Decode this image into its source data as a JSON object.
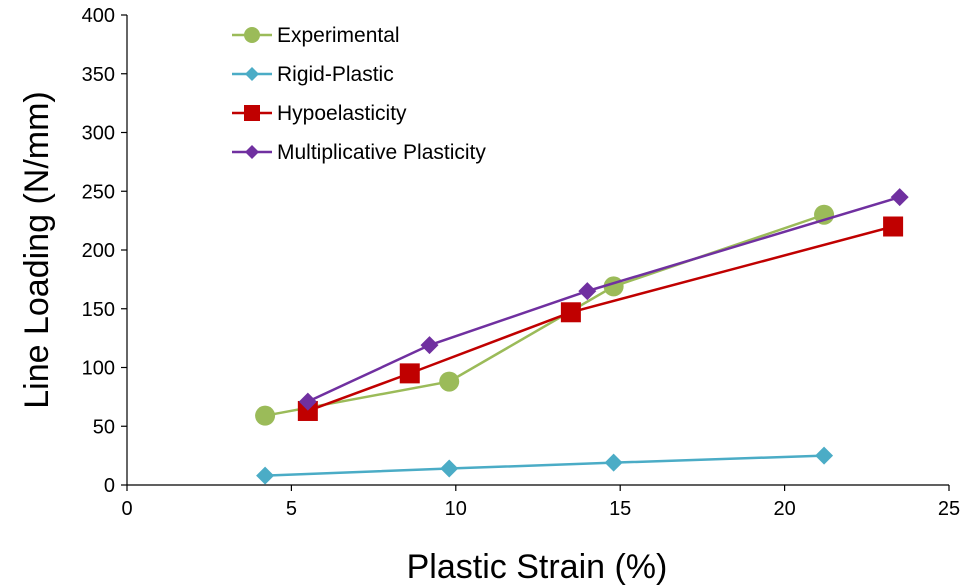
{
  "chart_data": {
    "type": "scatter",
    "xlabel": "Plastic Strain (%)",
    "ylabel": "Line Loading (N/mm)",
    "xlim": [
      0,
      25
    ],
    "ylim": [
      0,
      400
    ],
    "xticks": [
      0,
      5,
      10,
      15,
      20,
      25
    ],
    "yticks": [
      0,
      50,
      100,
      150,
      200,
      250,
      300,
      350,
      400
    ],
    "grid": false,
    "legend_position": "top-left",
    "series": [
      {
        "name": "Experimental",
        "color": "#9BBB59",
        "marker": "circle",
        "points": [
          [
            4.2,
            59
          ],
          [
            9.8,
            88
          ],
          [
            14.8,
            169
          ],
          [
            21.2,
            230
          ]
        ]
      },
      {
        "name": "Rigid-Plastic",
        "color": "#4BACC6",
        "marker": "diamond",
        "points": [
          [
            4.2,
            8
          ],
          [
            9.8,
            14
          ],
          [
            14.8,
            19
          ],
          [
            21.2,
            25
          ]
        ]
      },
      {
        "name": "Hypoelasticity",
        "color": "#C00000",
        "marker": "square",
        "points": [
          [
            5.5,
            63
          ],
          [
            8.6,
            95
          ],
          [
            13.5,
            147
          ],
          [
            23.3,
            220
          ]
        ]
      },
      {
        "name": "Multiplicative Plasticity",
        "color": "#7030A0",
        "marker": "diamond",
        "points": [
          [
            5.5,
            71
          ],
          [
            9.2,
            119
          ],
          [
            14.0,
            165
          ],
          [
            23.5,
            245
          ]
        ]
      }
    ]
  }
}
